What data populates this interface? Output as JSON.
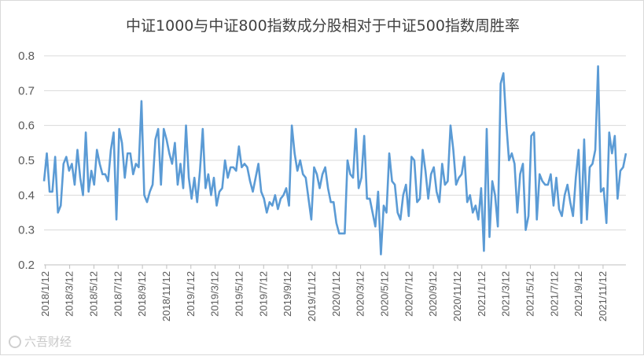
{
  "chart_data": {
    "type": "line",
    "title": "中证1000与中证800指数成分股相对于中证500指数周胜率",
    "xlabel": "",
    "ylabel": "",
    "ylim": [
      0.2,
      0.8
    ],
    "yticks": [
      "0.2",
      "0.3",
      "0.4",
      "0.5",
      "0.6",
      "0.7",
      "0.8"
    ],
    "grid": true,
    "legend": "none",
    "line_color": "#5b9bd5",
    "x_tick_labels": [
      "2018/1/12",
      "2018/3/12",
      "2018/5/12",
      "2018/7/12",
      "2018/9/12",
      "2018/11/12",
      "2019/1/12",
      "2019/3/12",
      "2019/5/12",
      "2019/7/12",
      "2019/9/12",
      "2019/11/12",
      "2020/1/12",
      "2020/3/12",
      "2020/5/12",
      "2020/7/12",
      "2020/9/12",
      "2020/11/12",
      "2021/1/12",
      "2021/3/12",
      "2021/5/12",
      "2021/7/12",
      "2021/9/12",
      "2021/11/12"
    ],
    "series": [
      {
        "name": "",
        "values": [
          0.44,
          0.52,
          0.41,
          0.41,
          0.51,
          0.35,
          0.37,
          0.49,
          0.51,
          0.47,
          0.49,
          0.43,
          0.53,
          0.45,
          0.4,
          0.58,
          0.41,
          0.47,
          0.43,
          0.53,
          0.49,
          0.46,
          0.46,
          0.44,
          0.53,
          0.58,
          0.33,
          0.59,
          0.55,
          0.45,
          0.52,
          0.52,
          0.46,
          0.49,
          0.48,
          0.67,
          0.4,
          0.38,
          0.41,
          0.43,
          0.56,
          0.59,
          0.43,
          0.59,
          0.56,
          0.52,
          0.49,
          0.55,
          0.43,
          0.49,
          0.42,
          0.6,
          0.45,
          0.39,
          0.45,
          0.38,
          0.47,
          0.59,
          0.42,
          0.46,
          0.4,
          0.45,
          0.37,
          0.41,
          0.42,
          0.5,
          0.45,
          0.48,
          0.48,
          0.47,
          0.54,
          0.48,
          0.49,
          0.48,
          0.44,
          0.41,
          0.45,
          0.49,
          0.41,
          0.39,
          0.35,
          0.38,
          0.37,
          0.4,
          0.36,
          0.39,
          0.4,
          0.42,
          0.37,
          0.6,
          0.52,
          0.47,
          0.5,
          0.46,
          0.45,
          0.39,
          0.33,
          0.48,
          0.46,
          0.42,
          0.46,
          0.48,
          0.42,
          0.38,
          0.38,
          0.32,
          0.29,
          0.29,
          0.29,
          0.5,
          0.46,
          0.45,
          0.59,
          0.42,
          0.45,
          0.57,
          0.39,
          0.39,
          0.35,
          0.31,
          0.41,
          0.23,
          0.37,
          0.35,
          0.52,
          0.44,
          0.43,
          0.35,
          0.33,
          0.4,
          0.43,
          0.34,
          0.51,
          0.5,
          0.38,
          0.39,
          0.53,
          0.47,
          0.39,
          0.46,
          0.48,
          0.41,
          0.38,
          0.49,
          0.43,
          0.44,
          0.6,
          0.53,
          0.43,
          0.45,
          0.46,
          0.51,
          0.38,
          0.4,
          0.35,
          0.37,
          0.33,
          0.42,
          0.24,
          0.59,
          0.28,
          0.44,
          0.4,
          0.31,
          0.72,
          0.75,
          0.61,
          0.5,
          0.52,
          0.49,
          0.35,
          0.46,
          0.49,
          0.3,
          0.34,
          0.57,
          0.58,
          0.33,
          0.46,
          0.44,
          0.43,
          0.43,
          0.46,
          0.37,
          0.45,
          0.36,
          0.34,
          0.4,
          0.43,
          0.38,
          0.34,
          0.45,
          0.53,
          0.32,
          0.56,
          0.33,
          0.48,
          0.49,
          0.53,
          0.77,
          0.41,
          0.42,
          0.32,
          0.58,
          0.52,
          0.57,
          0.39,
          0.47,
          0.48,
          0.52
        ]
      }
    ]
  },
  "watermark": {
    "text": "六吾财经",
    "icon": "watermark-logo-icon"
  }
}
